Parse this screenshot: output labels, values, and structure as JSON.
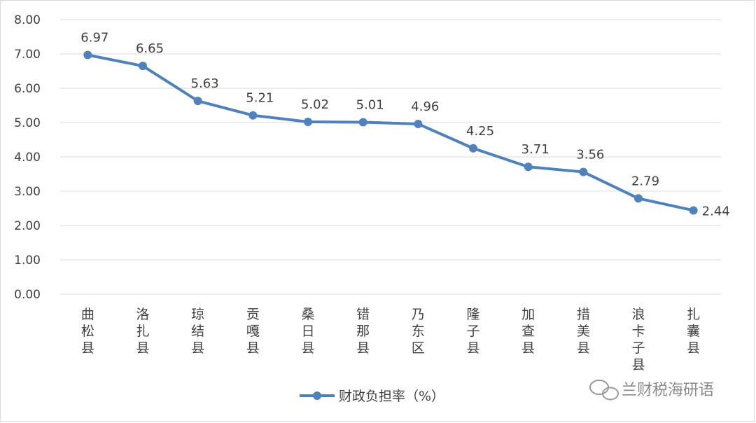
{
  "chart_data": {
    "type": "line",
    "categories": [
      "曲松县",
      "洛扎县",
      "琼结县",
      "贡嘎县",
      "桑日县",
      "错那县",
      "乃东区",
      "隆子县",
      "加查县",
      "措美县",
      "浪卡子县",
      "扎囊县"
    ],
    "series": [
      {
        "name": "财政负担率（%）",
        "values": [
          6.97,
          6.65,
          5.63,
          5.21,
          5.02,
          5.01,
          4.96,
          4.25,
          3.71,
          3.56,
          2.79,
          2.44
        ]
      }
    ],
    "data_labels": [
      "6.97",
      "6.65",
      "5.63",
      "5.21",
      "5.02",
      "5.01",
      "4.96",
      "4.25",
      "3.71",
      "3.56",
      "2.79",
      "2.44"
    ],
    "y_ticks": [
      "0.00",
      "1.00",
      "2.00",
      "3.00",
      "4.00",
      "5.00",
      "6.00",
      "7.00",
      "8.00"
    ],
    "ylim": [
      0,
      8
    ],
    "grid": true,
    "legend_position": "bottom",
    "line_color": "#4f81bd"
  },
  "watermark": {
    "text": "兰财税海研语",
    "icon": "wechat-icon"
  }
}
